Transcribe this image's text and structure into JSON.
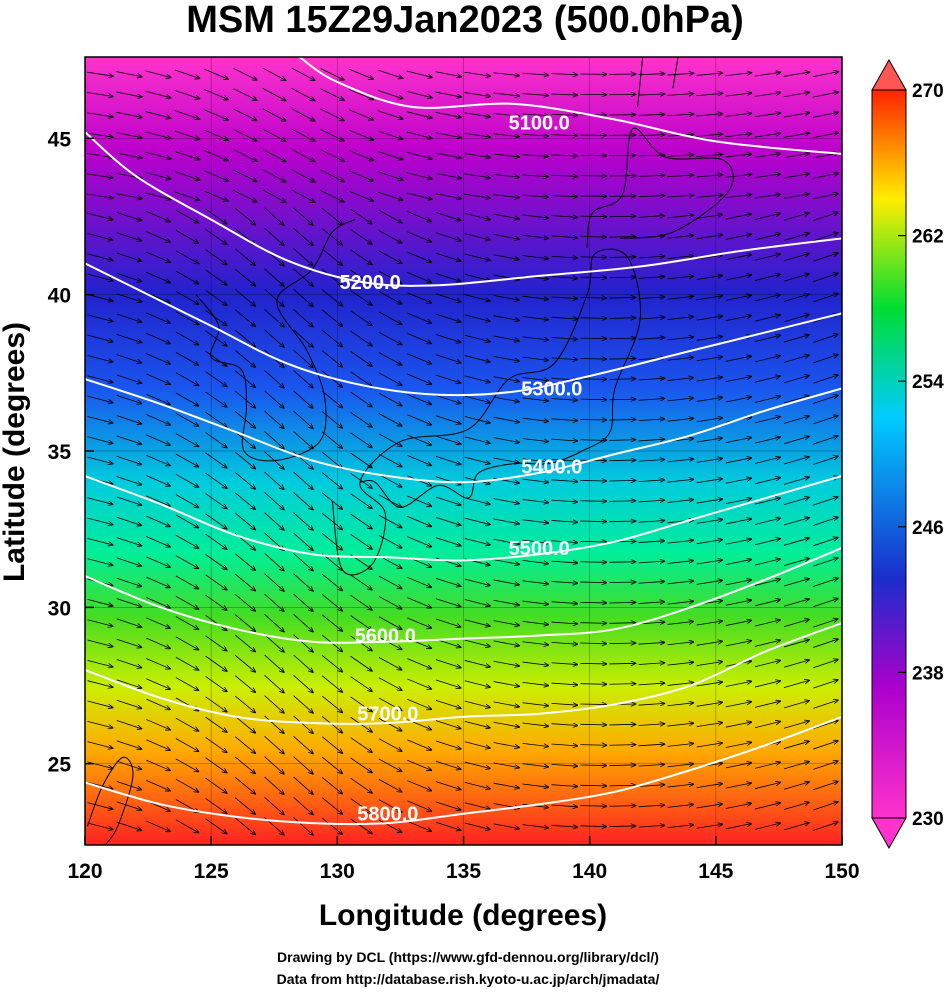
{
  "chart_data": {
    "type": "heatmap",
    "title": "MSM 15Z29Jan2023 (500.0hPa)",
    "xlabel": "Longitude (degrees)",
    "ylabel": "Latitude  (degrees)",
    "xlim": [
      120,
      150
    ],
    "ylim": [
      22.4,
      47.6
    ],
    "x_ticks": [
      120,
      125,
      130,
      135,
      140,
      145,
      150
    ],
    "y_ticks": [
      25,
      30,
      35,
      40,
      45
    ],
    "colorbar": {
      "range": [
        230,
        270
      ],
      "ticks": [
        230,
        238,
        246,
        254,
        262,
        270
      ],
      "colors": [
        "#ff33cc",
        "#aa00cc",
        "#1a2ecc",
        "#00ccff",
        "#00dd33",
        "#ffee00",
        "#ff2200"
      ]
    },
    "contours": [
      {
        "level": 5100,
        "label": "5100.0",
        "points": [
          [
            128.5,
            47.6
          ],
          [
            130,
            46.8
          ],
          [
            133,
            46.0
          ],
          [
            137,
            46.1
          ],
          [
            141,
            45.6
          ],
          [
            145,
            44.9
          ],
          [
            150,
            44.5
          ]
        ],
        "label_at": [
          138.0,
          45.5
        ]
      },
      {
        "level": 5200,
        "label": "5200.0",
        "points": [
          [
            120,
            45.2
          ],
          [
            122,
            43.8
          ],
          [
            125,
            42.4
          ],
          [
            128,
            41.1
          ],
          [
            131,
            40.4
          ],
          [
            134,
            40.3
          ],
          [
            138,
            40.6
          ],
          [
            142,
            40.9
          ],
          [
            146,
            41.4
          ],
          [
            150,
            41.8
          ]
        ],
        "label_at": [
          131.3,
          40.4
        ]
      },
      {
        "level": 5300,
        "label": "5300.0",
        "points": [
          [
            120,
            41.0
          ],
          [
            122,
            40.2
          ],
          [
            125,
            39.0
          ],
          [
            128,
            37.8
          ],
          [
            131,
            37.1
          ],
          [
            134,
            36.8
          ],
          [
            137,
            36.9
          ],
          [
            140,
            37.4
          ],
          [
            144,
            38.2
          ],
          [
            147,
            38.8
          ],
          [
            150,
            39.4
          ]
        ],
        "label_at": [
          138.5,
          37.0
        ]
      },
      {
        "level": 5400,
        "label": "5400.0",
        "points": [
          [
            120,
            37.3
          ],
          [
            123,
            36.5
          ],
          [
            126,
            35.6
          ],
          [
            129,
            34.7
          ],
          [
            132,
            34.2
          ],
          [
            135,
            34.0
          ],
          [
            138,
            34.3
          ],
          [
            141,
            34.9
          ],
          [
            144,
            35.5
          ],
          [
            147,
            36.3
          ],
          [
            150,
            37.0
          ]
        ],
        "label_at": [
          138.5,
          34.5
        ]
      },
      {
        "level": 5500,
        "label": "5500.0",
        "points": [
          [
            120,
            34.2
          ],
          [
            123,
            33.3
          ],
          [
            126,
            32.3
          ],
          [
            129,
            31.7
          ],
          [
            132,
            31.6
          ],
          [
            135,
            31.5
          ],
          [
            138,
            31.7
          ],
          [
            141,
            32.1
          ],
          [
            144,
            32.8
          ],
          [
            147,
            33.5
          ],
          [
            150,
            34.2
          ]
        ],
        "label_at": [
          138.0,
          31.9
        ]
      },
      {
        "level": 5600,
        "label": "5600.0",
        "points": [
          [
            120,
            31.0
          ],
          [
            123,
            30.0
          ],
          [
            126,
            29.3
          ],
          [
            129,
            28.9
          ],
          [
            132,
            28.9
          ],
          [
            135,
            29.0
          ],
          [
            138,
            29.1
          ],
          [
            141,
            29.3
          ],
          [
            144,
            30.0
          ],
          [
            147,
            30.9
          ],
          [
            150,
            31.9
          ]
        ],
        "label_at": [
          131.9,
          29.1
        ]
      },
      {
        "level": 5700,
        "label": "5700.0",
        "points": [
          [
            120,
            28.0
          ],
          [
            123,
            27.1
          ],
          [
            126,
            26.5
          ],
          [
            129,
            26.3
          ],
          [
            132,
            26.3
          ],
          [
            135,
            26.5
          ],
          [
            138,
            26.6
          ],
          [
            141,
            26.9
          ],
          [
            144,
            27.5
          ],
          [
            147,
            28.6
          ],
          [
            150,
            29.5
          ]
        ],
        "label_at": [
          132.0,
          26.6
        ]
      },
      {
        "level": 5800,
        "label": "5800.0",
        "points": [
          [
            120,
            24.4
          ],
          [
            123,
            23.7
          ],
          [
            126,
            23.3
          ],
          [
            129,
            23.1
          ],
          [
            132,
            23.1
          ],
          [
            135,
            23.4
          ],
          [
            138,
            23.7
          ],
          [
            141,
            24.1
          ],
          [
            144,
            24.8
          ],
          [
            147,
            25.6
          ],
          [
            150,
            26.5
          ]
        ],
        "label_at": [
          132.0,
          23.4
        ]
      }
    ],
    "wind_field": "westerly flow following the height contours",
    "credits": [
      "Drawing by DCL (https://www.gfd-dennou.org/library/dcl/)",
      "Data from http://database.rish.kyoto-u.ac.jp/arch/jmadata/"
    ]
  }
}
